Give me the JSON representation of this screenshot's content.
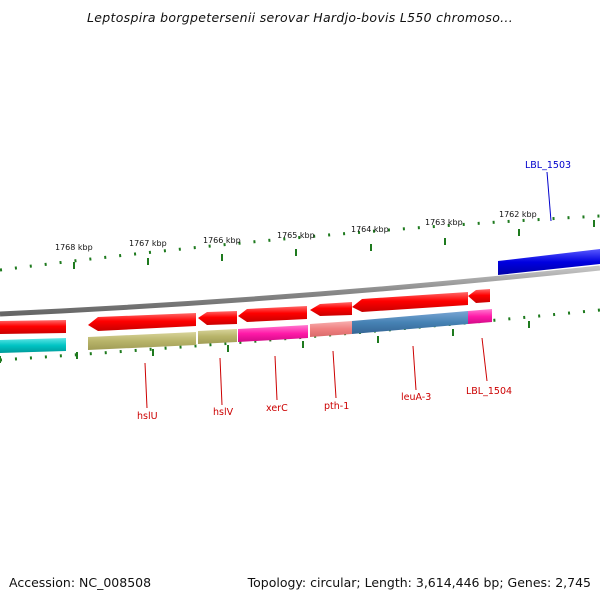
{
  "title": "Leptospira borgpetersenii serovar Hardjo-bovis L550 chromoso...",
  "footer": {
    "accession": "Accession: NC_008508",
    "summary": "Topology: circular; Length: 3,614,446 bp; Genes: 2,745"
  },
  "ruler": {
    "labels": [
      "1768 kbp",
      "1767 kbp",
      "1766 kbp",
      "1765 kbp",
      "1764 kbp",
      "1763 kbp",
      "1762 kbp"
    ],
    "color": "#1e7a1e"
  },
  "backbone_color": "#888888",
  "genes": [
    {
      "name": "",
      "track": "forward",
      "color": "#ff0000"
    },
    {
      "name": "",
      "track": "reverse-fwd",
      "color": "#ff0000"
    },
    {
      "name": "",
      "track": "reverse-fwd",
      "color": "#ff0000"
    },
    {
      "name": "",
      "track": "reverse-fwd",
      "color": "#ff0000"
    },
    {
      "name": "",
      "track": "reverse-fwd",
      "color": "#ff0000"
    },
    {
      "name": "",
      "track": "reverse-fwd",
      "color": "#ff0000"
    },
    {
      "name": "",
      "track": "reverse-fwd",
      "color": "#ff0000"
    }
  ],
  "gene_labels": [
    {
      "name": "LBL_1503",
      "color": "#0000cc"
    },
    {
      "name": "hslU",
      "color": "#cc0000"
    },
    {
      "name": "hslV",
      "color": "#cc0000"
    },
    {
      "name": "xerC",
      "color": "#cc0000"
    },
    {
      "name": "pth-1",
      "color": "#cc0000"
    },
    {
      "name": "leuA-3",
      "color": "#cc0000"
    },
    {
      "name": "LBL_1504",
      "color": "#cc0000"
    }
  ],
  "cog_colors": {
    "cyan": "#00c4c4",
    "khaki": "#b8b46a",
    "magenta": "#ff1aa8",
    "salmon": "#f08080",
    "steelblue": "#4682b4",
    "blue": "#0000dd"
  }
}
